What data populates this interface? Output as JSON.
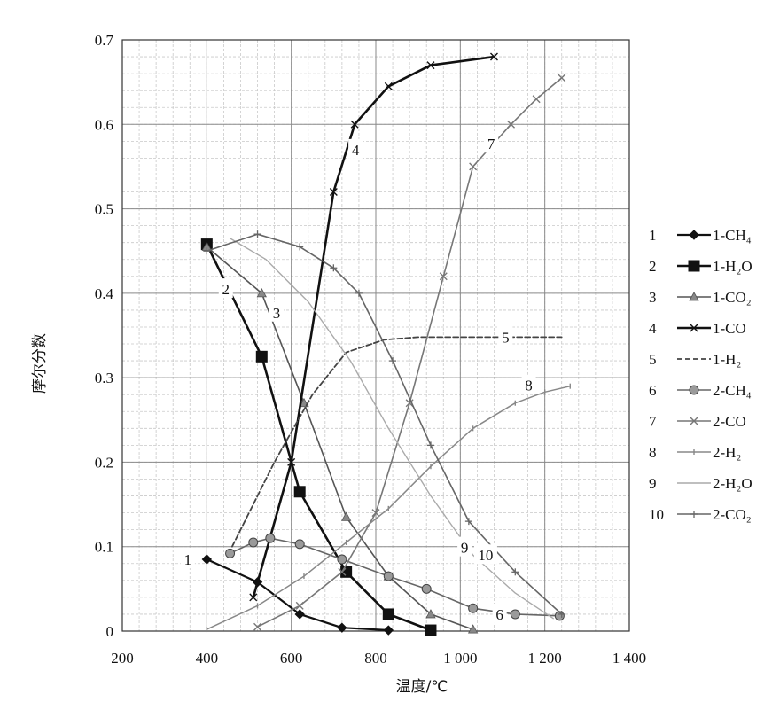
{
  "chart_data": {
    "type": "line",
    "title": "",
    "xlabel": "温度/℃",
    "ylabel": "摩尔分数",
    "xlim": [
      200,
      1400
    ],
    "ylim": [
      0,
      0.7
    ],
    "grid": true,
    "legend_position": "right",
    "x_tick_labels": [
      "200",
      "400",
      "600",
      "800",
      "1 000",
      "1 200",
      "1 400"
    ],
    "x_tick_values": [
      200,
      400,
      600,
      800,
      1000,
      1200,
      1400
    ],
    "y_tick_labels": [
      "0",
      "0.1",
      "0.2",
      "0.3",
      "0.4",
      "0.5",
      "0.6",
      "0.7"
    ],
    "y_tick_values": [
      0,
      0.1,
      0.2,
      0.3,
      0.4,
      0.5,
      0.6,
      0.7
    ],
    "series": [
      {
        "id": "1",
        "name": "1-CH₄",
        "color": "#111111",
        "width": 2.2,
        "dash": "",
        "marker": "diamond",
        "x": [
          400,
          520,
          620,
          720,
          830
        ],
        "y": [
          0.085,
          0.058,
          0.02,
          0.004,
          0.001
        ]
      },
      {
        "id": "2",
        "name": "1-H₂O",
        "color": "#111111",
        "width": 2.6,
        "dash": "",
        "marker": "square",
        "x": [
          400,
          530,
          620,
          730,
          830,
          930
        ],
        "y": [
          0.458,
          0.325,
          0.165,
          0.07,
          0.02,
          0.001
        ]
      },
      {
        "id": "3",
        "name": "1-CO₂",
        "color": "#555555",
        "width": 1.6,
        "dash": "",
        "marker": "triangle",
        "x": [
          400,
          530,
          630,
          730,
          830,
          930,
          1030
        ],
        "y": [
          0.455,
          0.4,
          0.27,
          0.135,
          0.065,
          0.02,
          0.002
        ]
      },
      {
        "id": "4",
        "name": "1-CO",
        "color": "#111111",
        "width": 2.6,
        "dash": "",
        "marker": "x",
        "x": [
          510,
          600,
          700,
          750,
          830,
          930,
          1080
        ],
        "y": [
          0.04,
          0.2,
          0.52,
          0.6,
          0.645,
          0.67,
          0.68
        ]
      },
      {
        "id": "5",
        "name": "1-H₂",
        "color": "#444444",
        "width": 1.8,
        "dash": "6 3",
        "marker": "none",
        "x": [
          460,
          560,
          650,
          730,
          820,
          900,
          1050,
          1240
        ],
        "y": [
          0.1,
          0.2,
          0.28,
          0.33,
          0.345,
          0.348,
          0.348,
          0.348
        ]
      },
      {
        "id": "6",
        "name": "2-CH₄",
        "color": "#666666",
        "width": 1.6,
        "dash": "",
        "marker": "circle",
        "x": [
          455,
          510,
          550,
          620,
          720,
          830,
          920,
          1030,
          1130,
          1235
        ],
        "y": [
          0.092,
          0.105,
          0.11,
          0.103,
          0.085,
          0.065,
          0.05,
          0.027,
          0.02,
          0.018
        ]
      },
      {
        "id": "7",
        "name": "2-CO",
        "color": "#777777",
        "width": 1.6,
        "dash": "",
        "marker": "x",
        "x": [
          520,
          620,
          720,
          800,
          880,
          960,
          1030,
          1120,
          1180,
          1240
        ],
        "y": [
          0.005,
          0.03,
          0.07,
          0.14,
          0.27,
          0.42,
          0.55,
          0.6,
          0.63,
          0.655
        ]
      },
      {
        "id": "8",
        "name": "2-H₂",
        "color": "#888888",
        "width": 1.5,
        "dash": "",
        "marker": "tick",
        "x": [
          400,
          520,
          630,
          730,
          830,
          930,
          1030,
          1130,
          1200,
          1260
        ],
        "y": [
          0.002,
          0.03,
          0.065,
          0.105,
          0.145,
          0.195,
          0.24,
          0.27,
          0.283,
          0.29
        ]
      },
      {
        "id": "9",
        "name": "2-H₂O",
        "color": "#aaaaaa",
        "width": 1.4,
        "dash": "",
        "marker": "none",
        "x": [
          455,
          540,
          640,
          740,
          830,
          930,
          1030,
          1130,
          1220
        ],
        "y": [
          0.465,
          0.44,
          0.39,
          0.32,
          0.24,
          0.16,
          0.09,
          0.045,
          0.015
        ]
      },
      {
        "id": "10",
        "name": "2-CO₂",
        "color": "#666666",
        "width": 1.6,
        "dash": "",
        "marker": "star",
        "x": [
          400,
          520,
          620,
          700,
          760,
          840,
          930,
          1020,
          1130,
          1240
        ],
        "y": [
          0.45,
          0.47,
          0.455,
          0.43,
          0.4,
          0.32,
          0.22,
          0.13,
          0.07,
          0.02
        ]
      }
    ],
    "curve_labels": [
      {
        "text": "1",
        "x": 355,
        "y": 0.085
      },
      {
        "text": "2",
        "x": 445,
        "y": 0.405
      },
      {
        "text": "3",
        "x": 565,
        "y": 0.377
      },
      {
        "text": "4",
        "x": 752,
        "y": 0.57
      },
      {
        "text": "5",
        "x": 1107,
        "y": 0.348
      },
      {
        "text": "6",
        "x": 1093,
        "y": 0.02
      },
      {
        "text": "7",
        "x": 1073,
        "y": 0.577
      },
      {
        "text": "8",
        "x": 1162,
        "y": 0.291
      },
      {
        "text": "9",
        "x": 1010,
        "y": 0.099
      },
      {
        "text": "10",
        "x": 1060,
        "y": 0.09
      }
    ]
  }
}
